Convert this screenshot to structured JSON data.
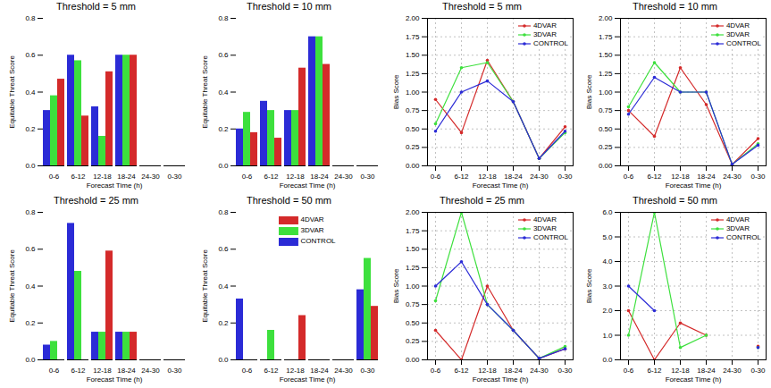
{
  "chart_data": [
    {
      "type": "bar",
      "title": "Threshold = 5 mm",
      "x_label": "Forecast Time (h)",
      "y_label": "Equitable Threat Score",
      "categories": [
        "0-6",
        "6-12",
        "12-18",
        "18-24",
        "24-30",
        "0-30"
      ],
      "series": [
        {
          "name": "4DVAR",
          "color": "#d42a2a",
          "values": [
            0.47,
            0.27,
            0.51,
            0.6,
            0,
            0
          ]
        },
        {
          "name": "3DVAR",
          "color": "#3de03d",
          "values": [
            0.38,
            0.57,
            0.16,
            0.6,
            0,
            0
          ]
        },
        {
          "name": "CONTROL",
          "color": "#2b2bd6",
          "values": [
            0.3,
            0.6,
            0.32,
            0.6,
            0,
            0
          ]
        }
      ],
      "ylim": [
        0,
        0.8
      ],
      "yticks": [
        {
          "value": 0,
          "label": "0.0"
        },
        0.2,
        0.4,
        0.6,
        0.8
      ],
      "grid": false
    },
    {
      "type": "bar",
      "title": "Threshold = 10 mm",
      "x_label": "Forecast Time (h)",
      "y_label": "Equitable Threat Score",
      "categories": [
        "0-6",
        "6-12",
        "12-18",
        "18-24",
        "24-30",
        "0-30"
      ],
      "series": [
        {
          "name": "4DVAR",
          "color": "#d42a2a",
          "values": [
            0.18,
            0.15,
            0.53,
            0.55,
            0,
            0
          ]
        },
        {
          "name": "3DVAR",
          "color": "#3de03d",
          "values": [
            0.29,
            0.3,
            0.3,
            0.7,
            0,
            0
          ]
        },
        {
          "name": "CONTROL",
          "color": "#2b2bd6",
          "values": [
            0.2,
            0.35,
            0.3,
            0.7,
            0,
            0
          ]
        }
      ],
      "ylim": [
        0,
        0.8
      ],
      "yticks": [
        {
          "value": 0,
          "label": "0.0"
        },
        0.2,
        0.4,
        0.6,
        0.8
      ],
      "grid": false
    },
    {
      "type": "line",
      "title": "Threshold = 5 mm",
      "x_label": "Forecast Time (h)",
      "y_label": "Bias Score",
      "categories": [
        "0-6",
        "6-12",
        "12-18",
        "18-24",
        "24-30",
        "0-30"
      ],
      "series": [
        {
          "name": "4DVAR",
          "color": "#d42a2a",
          "marker": "circle",
          "values": [
            0.9,
            0.45,
            1.43,
            0.87,
            0.1,
            0.53
          ]
        },
        {
          "name": "3DVAR",
          "color": "#3de03d",
          "marker": "circle",
          "values": [
            0.57,
            1.33,
            1.4,
            0.87,
            0.1,
            0.45
          ]
        },
        {
          "name": "CONTROL",
          "color": "#2b2bd6",
          "marker": "circle",
          "values": [
            0.47,
            1.0,
            1.15,
            0.87,
            0.1,
            0.47
          ]
        }
      ],
      "ylim": [
        0,
        2
      ],
      "yticks": [
        {
          "value": 0,
          "label": "0.00"
        },
        0.25,
        {
          "value": 0.5,
          "label": "0.50"
        },
        0.75,
        {
          "value": 1,
          "label": "1.00"
        },
        1.25,
        {
          "value": 1.5,
          "label": "1.50"
        },
        1.75,
        {
          "value": 2,
          "label": "2.00"
        }
      ],
      "grid": true,
      "legend": "upper right"
    },
    {
      "type": "line",
      "title": "Threshold = 10 mm",
      "x_label": "Forecast Time (h)",
      "y_label": "Bias Score",
      "categories": [
        "0-6",
        "6-12",
        "12-18",
        "18-24",
        "24-30",
        "0-30"
      ],
      "series": [
        {
          "name": "4DVAR",
          "color": "#d42a2a",
          "marker": "circle",
          "values": [
            0.75,
            0.4,
            1.33,
            0.83,
            0.02,
            0.37
          ]
        },
        {
          "name": "3DVAR",
          "color": "#3de03d",
          "marker": "circle",
          "values": [
            0.8,
            1.4,
            1.0,
            1.0,
            0.02,
            0.3
          ]
        },
        {
          "name": "CONTROL",
          "color": "#2b2bd6",
          "marker": "circle",
          "values": [
            0.7,
            1.2,
            1.0,
            1.0,
            0.02,
            0.28
          ]
        }
      ],
      "ylim": [
        0,
        2
      ],
      "yticks": [
        {
          "value": 0,
          "label": "0.00"
        },
        0.25,
        {
          "value": 0.5,
          "label": "0.50"
        },
        0.75,
        {
          "value": 1,
          "label": "1.00"
        },
        1.25,
        {
          "value": 1.5,
          "label": "1.50"
        },
        1.75,
        {
          "value": 2,
          "label": "2.00"
        }
      ],
      "grid": true,
      "legend": "upper right"
    },
    {
      "type": "bar",
      "title": "Threshold = 25 mm",
      "x_label": "Forecast Time (h)",
      "y_label": "Equitable Threat Score",
      "categories": [
        "0-6",
        "6-12",
        "12-18",
        "18-24",
        "24-30",
        "0-30"
      ],
      "series": [
        {
          "name": "4DVAR",
          "color": "#d42a2a",
          "values": [
            0,
            0,
            0.59,
            0.15,
            0,
            0
          ]
        },
        {
          "name": "3DVAR",
          "color": "#3de03d",
          "values": [
            0.1,
            0.48,
            0.15,
            0.15,
            0,
            0
          ]
        },
        {
          "name": "CONTROL",
          "color": "#2b2bd6",
          "values": [
            0.08,
            0.74,
            0.15,
            0.15,
            0,
            0
          ]
        }
      ],
      "ylim": [
        0,
        0.8
      ],
      "yticks": [
        {
          "value": 0,
          "label": "0.0"
        },
        0.2,
        0.4,
        0.6,
        0.8
      ],
      "grid": false
    },
    {
      "type": "bar",
      "title": "Threshold = 50 mm",
      "x_label": "Forecast Time (h)",
      "y_label": "Equitable Threat Score",
      "categories": [
        "0-6",
        "6-12",
        "12-18",
        "18-24",
        "24-30",
        "0-30"
      ],
      "series": [
        {
          "name": "4DVAR",
          "color": "#d42a2a",
          "values": [
            0,
            0,
            0.24,
            0,
            0,
            0.29
          ]
        },
        {
          "name": "3DVAR",
          "color": "#3de03d",
          "values": [
            0,
            0.16,
            0,
            0,
            0,
            0.55
          ]
        },
        {
          "name": "CONTROL",
          "color": "#2b2bd6",
          "values": [
            0.33,
            0,
            0,
            0,
            0,
            0.38
          ]
        }
      ],
      "ylim": [
        0,
        0.8
      ],
      "yticks": [
        {
          "value": 0,
          "label": "0.0"
        },
        0.2,
        0.4,
        0.6,
        0.8
      ],
      "grid": false,
      "legend": "upper center"
    },
    {
      "type": "line",
      "title": "Threshold = 25 mm",
      "x_label": "Forecast Time (h)",
      "y_label": "Bias Score",
      "categories": [
        "0-6",
        "6-12",
        "12-18",
        "18-24",
        "24-30",
        "0-30"
      ],
      "series": [
        {
          "name": "4DVAR",
          "color": "#d42a2a",
          "marker": "circle",
          "values": [
            0.4,
            0,
            1.0,
            0.4,
            0.02,
            0.15
          ]
        },
        {
          "name": "3DVAR",
          "color": "#3de03d",
          "marker": "circle",
          "values": [
            0.8,
            2.0,
            0.75,
            0.4,
            0.02,
            0.18
          ]
        },
        {
          "name": "CONTROL",
          "color": "#2b2bd6",
          "marker": "circle",
          "values": [
            1.0,
            1.33,
            0.75,
            0.4,
            0.02,
            0.15
          ]
        }
      ],
      "ylim": [
        0,
        2
      ],
      "yticks": [
        {
          "value": 0,
          "label": "0.00"
        },
        0.25,
        {
          "value": 0.5,
          "label": "0.50"
        },
        0.75,
        {
          "value": 1,
          "label": "1.00"
        },
        1.25,
        {
          "value": 1.5,
          "label": "1.50"
        },
        1.75,
        {
          "value": 2,
          "label": "2.00"
        }
      ],
      "grid": true,
      "legend": "upper right"
    },
    {
      "type": "line",
      "title": "Threshold = 50 mm",
      "x_label": "Forecast Time (h)",
      "y_label": "Bias Score",
      "categories": [
        "0-6",
        "6-12",
        "12-18",
        "18-24",
        "24-30",
        "0-30"
      ],
      "series": [
        {
          "name": "4DVAR",
          "color": "#d42a2a",
          "marker": "circle",
          "values": [
            2.0,
            0,
            1.5,
            1.0,
            null,
            0.55
          ]
        },
        {
          "name": "3DVAR",
          "color": "#3de03d",
          "marker": "circle",
          "values": [
            1.0,
            6.0,
            0.5,
            1.0,
            null,
            0.5
          ]
        },
        {
          "name": "CONTROL",
          "color": "#2b2bd6",
          "marker": "circle",
          "values": [
            3.0,
            2.0,
            null,
            null,
            null,
            0.5
          ]
        }
      ],
      "ylim": [
        0,
        6
      ],
      "yticks": [
        {
          "value": 0,
          "label": "0.0"
        },
        {
          "value": 1,
          "label": "1.0"
        },
        {
          "value": 2,
          "label": "2.0"
        },
        {
          "value": 3,
          "label": "3.0"
        },
        {
          "value": 4,
          "label": "4.0"
        },
        {
          "value": 5,
          "label": "5.0"
        },
        {
          "value": 6,
          "label": "6.0"
        }
      ],
      "grid": true,
      "legend": "upper right"
    }
  ]
}
